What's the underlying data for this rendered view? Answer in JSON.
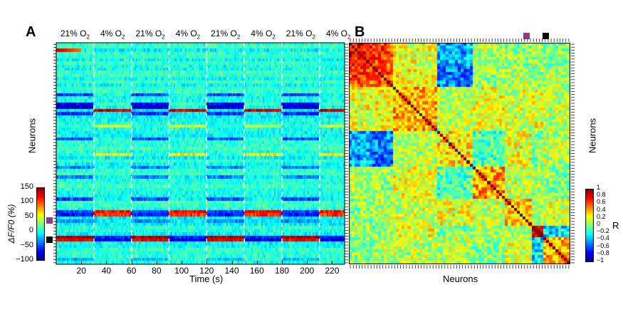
{
  "panels": {
    "A": {
      "letter": "A",
      "conditions": [
        {
          "main": "21% O",
          "sub": "2"
        },
        {
          "main": "4% O",
          "sub": "2"
        },
        {
          "main": "21% O",
          "sub": "2"
        },
        {
          "main": "4% O",
          "sub": "2"
        },
        {
          "main": "21% O",
          "sub": "2"
        },
        {
          "main": "4% O",
          "sub": "2"
        },
        {
          "main": "21% O",
          "sub": "2"
        },
        {
          "main": "4% O",
          "sub": "2"
        }
      ],
      "ylabel": "Neurons",
      "xlabel": "Time (s)",
      "colorbar_label": "ΔF/F0 (%)",
      "colorbar_ticks": [
        "150",
        "100",
        "50",
        "0",
        "−50",
        "−100"
      ]
    },
    "B": {
      "letter": "B",
      "ylabel": "Neurons",
      "xlabel": "Neurons",
      "colorbar_label": "R",
      "colorbar_ticks": [
        "1",
        "0.8",
        "0.6",
        "0.4",
        "0.2",
        "0",
        "−0.2",
        "−0.4",
        "−0.6",
        "−0.8",
        "−1"
      ]
    }
  },
  "markers": {
    "purple": "#8b3a8f",
    "black": "#000000"
  },
  "chart_data": [
    {
      "type": "heatmap",
      "title": "",
      "xlabel": "Time (s)",
      "ylabel": "Neurons",
      "x_ticks": [
        20,
        40,
        60,
        80,
        100,
        120,
        140,
        160,
        180,
        200,
        220
      ],
      "xlim": [
        0,
        230
      ],
      "colorbar": {
        "label": "ΔF/F0 (%)",
        "range": [
          -100,
          150
        ],
        "ticks": [
          150,
          100,
          50,
          0,
          -50,
          -100
        ],
        "colormap": "jet"
      },
      "stimulus_switch_times_s": [
        30,
        60,
        90,
        120,
        150,
        180,
        210
      ],
      "conditions": [
        "21% O2",
        "4% O2",
        "21% O2",
        "4% O2",
        "21% O2",
        "4% O2",
        "21% O2",
        "4% O2"
      ],
      "n_neurons_approx": 70,
      "notable_rows": [
        {
          "row_fraction": 0.03,
          "pattern": "high at start (~0-20 s)",
          "value_max": 130
        },
        {
          "row_fraction": 0.3,
          "pattern": "positive during 4% O2 epochs",
          "value_max": 140
        },
        {
          "row_fraction": 0.28,
          "pattern": "negative during 21% O2 epochs",
          "value_min": -80
        },
        {
          "row_fraction": 0.76,
          "pattern": "positive in 4% O2, negative in 21% O2",
          "value_max": 110
        },
        {
          "row_fraction": 0.88,
          "pattern": "positive during 21% O2 epochs",
          "value_max": 130
        }
      ]
    },
    {
      "type": "heatmap",
      "title": "",
      "xlabel": "Neurons",
      "ylabel": "Neurons",
      "colorbar": {
        "label": "R",
        "range": [
          -1,
          1
        ],
        "ticks": [
          1,
          0.8,
          0.6,
          0.4,
          0.2,
          0,
          -0.2,
          -0.4,
          -0.6,
          -0.8,
          -1
        ],
        "colormap": "jet"
      },
      "diagonal_value": 1,
      "description_values": {
        "cluster_top_left_R": 0.7,
        "anticorrelated_block_R": -0.6
      }
    }
  ]
}
